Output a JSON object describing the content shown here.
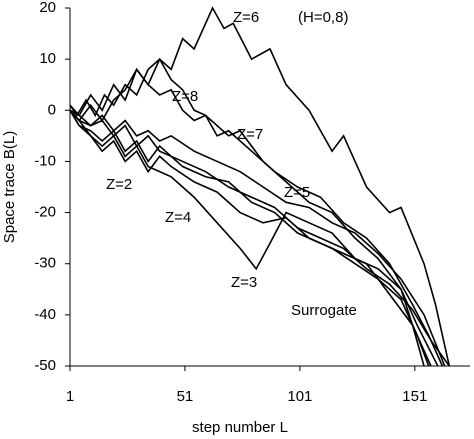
{
  "chart_data": {
    "type": "line",
    "xlabel": "step number L",
    "ylabel": "Space trace B(L)",
    "annotations": [
      "(H=0,8)"
    ],
    "xlim": [
      1,
      175
    ],
    "ylim": [
      -50,
      20
    ],
    "xticks": [
      1,
      51,
      101,
      151
    ],
    "yticks": [
      -50,
      -40,
      -30,
      -20,
      -10,
      0,
      10,
      20
    ],
    "series": [
      {
        "name": "Z=6",
        "color": "#000000",
        "x": [
          1,
          5,
          10,
          15,
          20,
          25,
          30,
          35,
          40,
          45,
          50,
          55,
          63,
          68,
          72,
          80,
          88,
          95,
          105,
          115,
          120,
          130,
          140,
          145,
          155,
          160,
          166
        ],
        "values": [
          1,
          -1,
          3,
          0,
          5,
          2,
          8,
          5,
          10,
          8,
          14,
          12,
          20,
          16,
          17,
          10,
          12,
          5,
          0,
          -8,
          -5,
          -15,
          -20,
          -19,
          -30,
          -38,
          -50
        ]
      },
      {
        "name": "Z=8",
        "color": "#000000",
        "x": [
          1,
          4,
          8,
          12,
          16,
          20,
          25,
          30,
          35,
          40,
          45,
          50,
          55,
          60,
          65,
          70,
          80,
          90,
          100,
          110,
          120,
          130,
          140,
          150,
          157,
          163
        ],
        "values": [
          1,
          -1,
          2,
          -1,
          3,
          1,
          5,
          3,
          8,
          10,
          6,
          4,
          0,
          -1,
          -5,
          -4,
          -8,
          -12,
          -15,
          -17,
          -22,
          -25,
          -30,
          -38,
          -44,
          -50
        ]
      },
      {
        "name": "Z=7",
        "color": "#000000",
        "x": [
          1,
          5,
          10,
          15,
          20,
          25,
          30,
          35,
          40,
          45,
          50,
          55,
          60,
          70,
          75,
          85,
          95,
          105,
          115,
          125,
          135,
          145,
          152,
          161
        ],
        "values": [
          0,
          -2,
          1,
          -2,
          2,
          4,
          8,
          5,
          3,
          4,
          0,
          -2,
          -1,
          -5,
          -4,
          -10,
          -14,
          -18,
          -20,
          -25,
          -29,
          -35,
          -42,
          -50
        ]
      },
      {
        "name": "Z=2",
        "color": "#000000",
        "x": [
          1,
          5,
          10,
          15,
          20,
          25,
          30,
          35,
          40,
          45,
          50,
          60,
          70,
          80,
          90,
          100,
          110,
          120,
          130,
          140,
          150,
          158
        ],
        "values": [
          0,
          -3,
          -4,
          -6,
          -4,
          -8,
          -6,
          -10,
          -7,
          -9,
          -11,
          -13,
          -14,
          -18,
          -20,
          -24,
          -26,
          -28,
          -30,
          -36,
          -42,
          -50
        ]
      },
      {
        "name": "Z=5",
        "color": "#000000",
        "x": [
          1,
          5,
          10,
          15,
          20,
          25,
          30,
          35,
          40,
          45,
          55,
          65,
          75,
          85,
          95,
          105,
          115,
          125,
          135,
          145,
          155,
          164
        ],
        "values": [
          0,
          -2,
          -3,
          -1,
          -4,
          -2,
          -5,
          -4,
          -6,
          -5,
          -8,
          -10,
          -12,
          -15,
          -18,
          -19,
          -22,
          -24,
          -28,
          -33,
          -40,
          -50
        ]
      },
      {
        "name": "Z=4",
        "color": "#000000",
        "x": [
          1,
          5,
          10,
          15,
          20,
          25,
          30,
          35,
          40,
          45,
          55,
          65,
          75,
          85,
          95,
          105,
          115,
          125,
          135,
          145,
          152,
          157
        ],
        "values": [
          0,
          -3,
          -5,
          -8,
          -6,
          -10,
          -8,
          -12,
          -9,
          -11,
          -14,
          -16,
          -20,
          -22,
          -21,
          -25,
          -27,
          -30,
          -33,
          -37,
          -44,
          -50
        ]
      },
      {
        "name": "Z=3",
        "color": "#000000",
        "x": [
          1,
          5,
          10,
          15,
          20,
          25,
          30,
          35,
          45,
          55,
          65,
          75,
          82,
          88,
          95,
          105,
          115,
          125,
          135,
          145,
          150,
          155
        ],
        "values": [
          0,
          -2,
          -5,
          -7,
          -5,
          -9,
          -7,
          -11,
          -13,
          -17,
          -22,
          -27,
          -31,
          -26,
          -20,
          -22,
          -24,
          -29,
          -31,
          -35,
          -42,
          -50
        ]
      },
      {
        "name": "Surrogate",
        "color": "#000000",
        "x": [
          1,
          5,
          10,
          15,
          20,
          25,
          30,
          35,
          40,
          50,
          60,
          70,
          80,
          90,
          100,
          110,
          120,
          130,
          140,
          150,
          158,
          166
        ],
        "values": [
          0,
          -1,
          -3,
          -2,
          -5,
          -3,
          -7,
          -5,
          -8,
          -10,
          -12,
          -15,
          -17,
          -19,
          -23,
          -25,
          -27,
          -31,
          -34,
          -39,
          -45,
          -50
        ]
      }
    ]
  }
}
